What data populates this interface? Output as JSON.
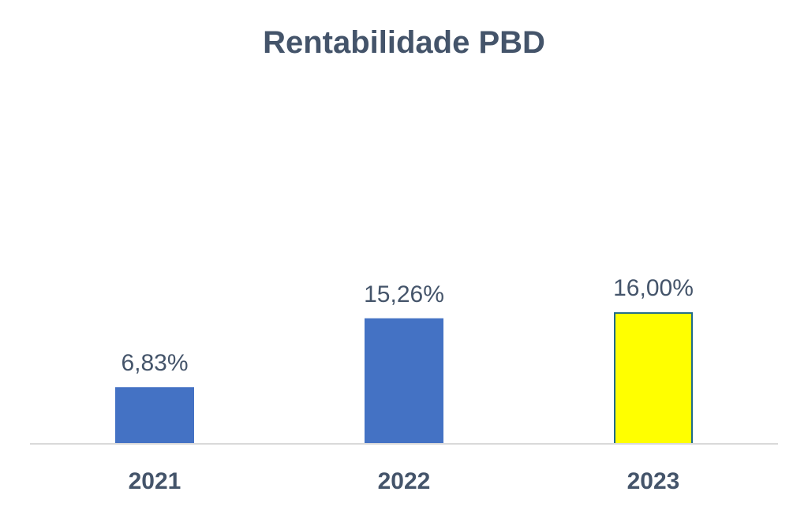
{
  "chart_data": {
    "type": "bar",
    "title": "Rentabilidade PBD",
    "xlabel": "",
    "ylabel": "",
    "categories": [
      "2021",
      "2022",
      "2023"
    ],
    "values": [
      6.83,
      15.26,
      16.0
    ],
    "data_labels": [
      "6,83%",
      "15,26%",
      "16,00%"
    ],
    "bar_colors": [
      "#4472c4",
      "#4472c4",
      "#ffff00"
    ],
    "bar_outline_colors": [
      "#4472c4",
      "#4472c4",
      "#1f6b8a"
    ],
    "ylim": [
      0,
      20
    ],
    "grid": false,
    "legend": "none"
  },
  "colors": {
    "title": "#44546a",
    "labels": "#44546a",
    "axis_line": "#d9d9d9"
  }
}
